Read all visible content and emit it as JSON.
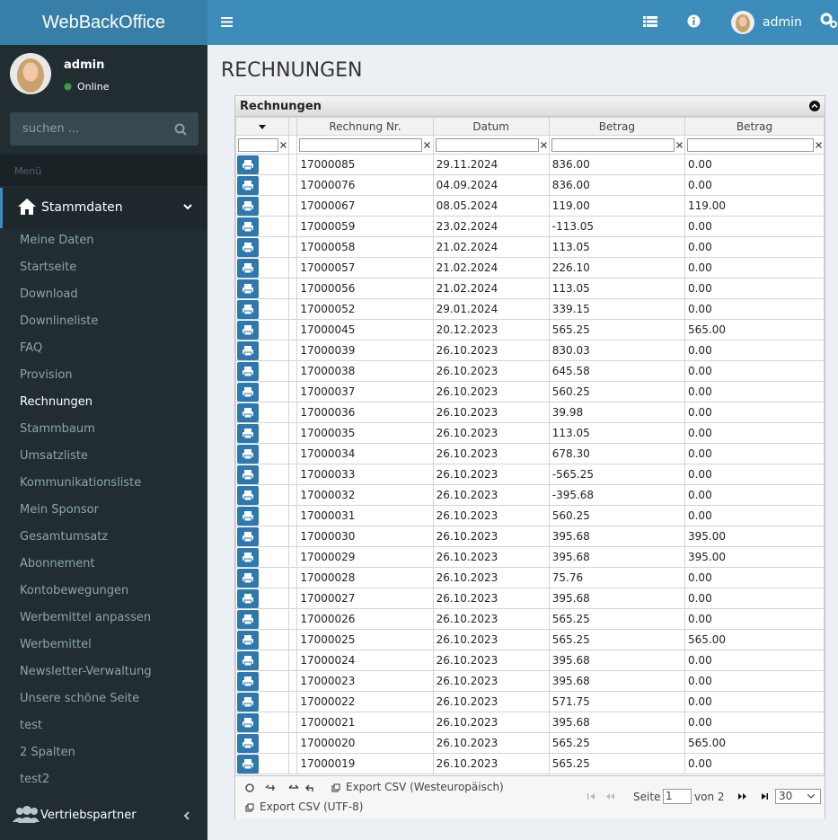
{
  "header": {
    "brand": "WebBackOffice",
    "user": "admin"
  },
  "sidebar": {
    "user": {
      "name": "admin",
      "status": "Online"
    },
    "search_placeholder": "suchen ...",
    "menu_label": "Menü",
    "section": "Stammdaten",
    "items": [
      "Meine Daten",
      "Startseite",
      "Download",
      "Downlineliste",
      "FAQ",
      "Provision",
      "Rechnungen",
      "Stammbaum",
      "Umsatzliste",
      "Kommunikationsliste",
      "Mein Sponsor",
      "Gesamtumsatz",
      "Abonnement",
      "Kontobewegungen",
      "Werbemittel anpassen",
      "Werbemittel",
      "Newsletter-Verwaltung",
      "Unsere schöne Seite",
      "test",
      "2 Spalten",
      "test2"
    ],
    "bottom_section": "Vertriebspartner"
  },
  "page_title": "RECHNUNGEN",
  "table": {
    "title": "Rechnungen",
    "columns": [
      "Rechnung Nr.",
      "Datum",
      "Betrag",
      "Betrag"
    ],
    "rows": [
      [
        "17000085",
        "29.11.2024",
        "836.00",
        "0.00"
      ],
      [
        "17000076",
        "04.09.2024",
        "836.00",
        "0.00"
      ],
      [
        "17000067",
        "08.05.2024",
        "119.00",
        "119.00"
      ],
      [
        "17000059",
        "23.02.2024",
        "-113.05",
        "0.00"
      ],
      [
        "17000058",
        "21.02.2024",
        "113.05",
        "0.00"
      ],
      [
        "17000057",
        "21.02.2024",
        "226.10",
        "0.00"
      ],
      [
        "17000056",
        "21.02.2024",
        "113.05",
        "0.00"
      ],
      [
        "17000052",
        "29.01.2024",
        "339.15",
        "0.00"
      ],
      [
        "17000045",
        "20.12.2023",
        "565.25",
        "565.00"
      ],
      [
        "17000039",
        "26.10.2023",
        "830.03",
        "0.00"
      ],
      [
        "17000038",
        "26.10.2023",
        "645.58",
        "0.00"
      ],
      [
        "17000037",
        "26.10.2023",
        "560.25",
        "0.00"
      ],
      [
        "17000036",
        "26.10.2023",
        "39.98",
        "0.00"
      ],
      [
        "17000035",
        "26.10.2023",
        "113.05",
        "0.00"
      ],
      [
        "17000034",
        "26.10.2023",
        "678.30",
        "0.00"
      ],
      [
        "17000033",
        "26.10.2023",
        "-565.25",
        "0.00"
      ],
      [
        "17000032",
        "26.10.2023",
        "-395.68",
        "0.00"
      ],
      [
        "17000031",
        "26.10.2023",
        "560.25",
        "0.00"
      ],
      [
        "17000030",
        "26.10.2023",
        "395.68",
        "395.00"
      ],
      [
        "17000029",
        "26.10.2023",
        "395.68",
        "395.00"
      ],
      [
        "17000028",
        "26.10.2023",
        "75.76",
        "0.00"
      ],
      [
        "17000027",
        "26.10.2023",
        "395.68",
        "0.00"
      ],
      [
        "17000026",
        "26.10.2023",
        "565.25",
        "0.00"
      ],
      [
        "17000025",
        "26.10.2023",
        "565.25",
        "565.00"
      ],
      [
        "17000024",
        "26.10.2023",
        "395.68",
        "0.00"
      ],
      [
        "17000023",
        "26.10.2023",
        "395.68",
        "0.00"
      ],
      [
        "17000022",
        "26.10.2023",
        "571.75",
        "0.00"
      ],
      [
        "17000021",
        "26.10.2023",
        "395.68",
        "0.00"
      ],
      [
        "17000020",
        "26.10.2023",
        "565.25",
        "565.00"
      ],
      [
        "17000019",
        "26.10.2023",
        "565.25",
        "0.00"
      ]
    ],
    "pager": {
      "export_west": "Export CSV (Westeuropäisch)",
      "export_utf8": "Export CSV (UTF-8)",
      "page_label": "Seite",
      "page": "1",
      "of": "von 2",
      "per_page": "30"
    }
  }
}
